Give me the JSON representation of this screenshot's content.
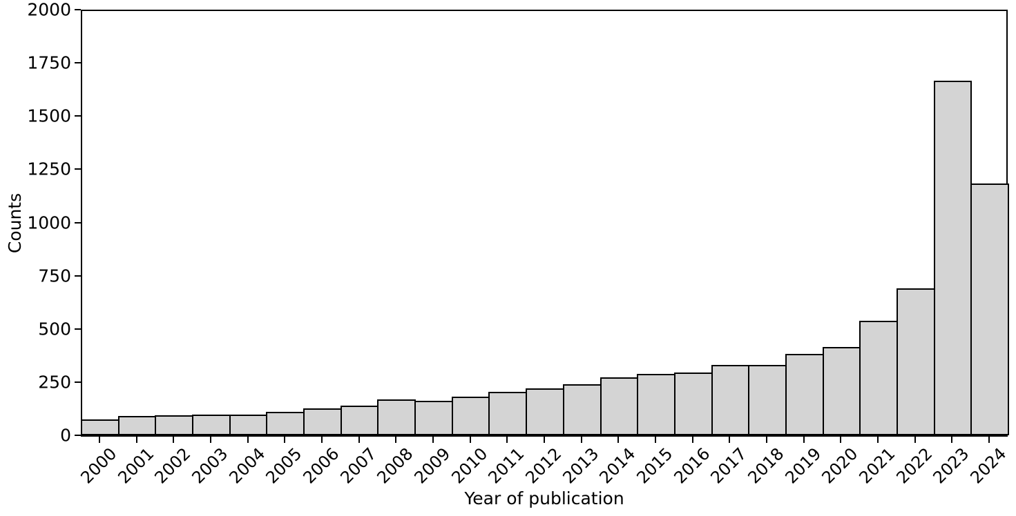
{
  "chart_data": {
    "type": "bar",
    "title": "",
    "xlabel": "Year of publication",
    "ylabel": "Counts",
    "categories": [
      "2000",
      "2001",
      "2002",
      "2003",
      "2004",
      "2005",
      "2006",
      "2007",
      "2008",
      "2009",
      "2010",
      "2011",
      "2012",
      "2013",
      "2014",
      "2015",
      "2016",
      "2017",
      "2018",
      "2019",
      "2020",
      "2021",
      "2022",
      "2023",
      "2024"
    ],
    "values": [
      75,
      90,
      95,
      97,
      97,
      110,
      125,
      138,
      167,
      161,
      183,
      205,
      220,
      240,
      273,
      289,
      296,
      330,
      330,
      383,
      416,
      539,
      692,
      1665,
      1183
    ],
    "ylim": [
      0,
      2000
    ],
    "yticks": [
      0,
      250,
      500,
      750,
      1000,
      1250,
      1500,
      1750,
      2000
    ],
    "grid": false,
    "legend": null,
    "colors": {
      "bar_fill": "#d4d4d4",
      "bar_edge": "#000000",
      "axis": "#000000",
      "text": "#000000",
      "background": "#ffffff"
    }
  }
}
